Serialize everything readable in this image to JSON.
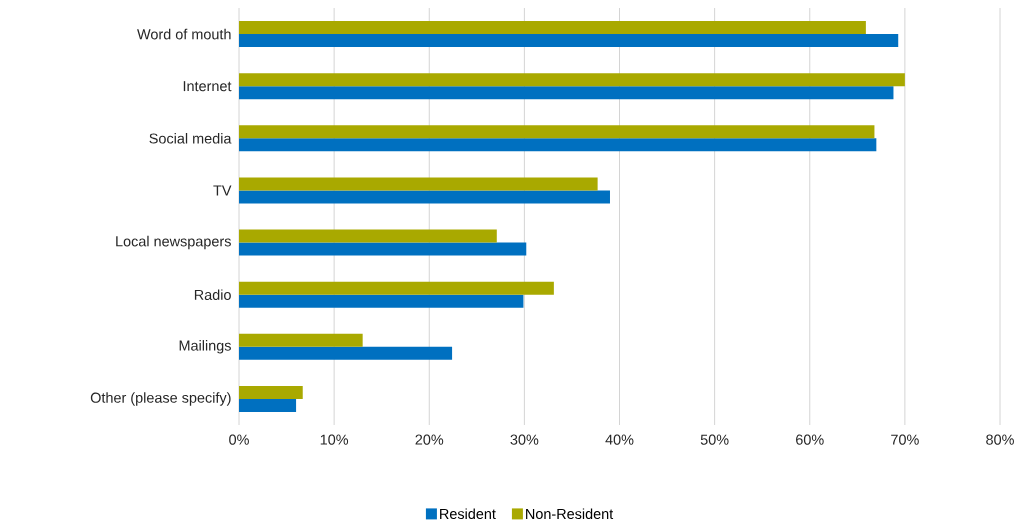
{
  "chart_data": {
    "type": "bar",
    "orientation": "horizontal",
    "categories": [
      "Word of mouth",
      "Internet",
      "Social media",
      "TV",
      "Local newspapers",
      "Radio",
      "Mailings",
      "Other (please specify)"
    ],
    "series": [
      {
        "name": "Resident",
        "color": "#0070c0",
        "values": [
          69.3,
          68.8,
          67.0,
          39.0,
          30.2,
          29.9,
          22.4,
          6.0
        ]
      },
      {
        "name": "Non-Resident",
        "color": "#a9a900",
        "values": [
          65.9,
          70.0,
          66.8,
          37.7,
          27.1,
          33.1,
          13.0,
          6.7
        ]
      }
    ],
    "xlim": [
      0,
      80
    ],
    "xticks": [
      {
        "value": 0,
        "label": "0%"
      },
      {
        "value": 10,
        "label": "10%"
      },
      {
        "value": 20,
        "label": "20%"
      },
      {
        "value": 30,
        "label": "30%"
      },
      {
        "value": 40,
        "label": "40%"
      },
      {
        "value": 50,
        "label": "50%"
      },
      {
        "value": 60,
        "label": "60%"
      },
      {
        "value": 70,
        "label": "70%"
      },
      {
        "value": 80,
        "label": "80%"
      }
    ],
    "grid": "x",
    "legend": "bottom"
  }
}
